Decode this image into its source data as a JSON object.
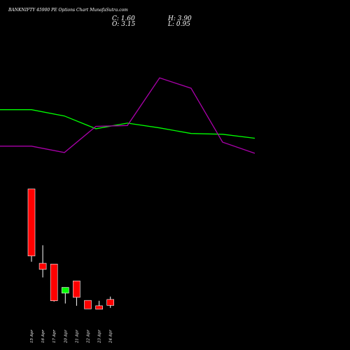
{
  "header": {
    "title": "BANKNIFTY 45900 PE Options Chart MunafaSutra.com",
    "close_text": "C: 1.60",
    "open_text": "O: 3.15",
    "high_text": "H: 3.90",
    "low_text": "L: 0.95"
  },
  "chart_data": {
    "type": "candlestick",
    "title": "BANKNIFTY 45900 PE Options Chart MunafaSutra.com",
    "categories": [
      "15 Apr",
      "16 Apr",
      "17 Apr",
      "20 Apr",
      "21 Apr",
      "22 Apr",
      "23 Apr",
      "24 Apr"
    ],
    "ohlc": [
      {
        "date": "15 Apr",
        "open": 32.0,
        "high": 32.0,
        "low": 13.0,
        "close": 14.5
      },
      {
        "date": "16 Apr",
        "open": 12.6,
        "high": 17.3,
        "low": 8.9,
        "close": 11.0
      },
      {
        "date": "17 Apr",
        "open": 12.4,
        "high": 12.4,
        "low": 2.6,
        "close": 2.8
      },
      {
        "date": "20 Apr",
        "open": 4.8,
        "high": 6.3,
        "low": 2.1,
        "close": 6.3
      },
      {
        "date": "21 Apr",
        "open": 8.0,
        "high": 8.0,
        "low": 1.5,
        "close": 3.7
      },
      {
        "date": "22 Apr",
        "open": 2.9,
        "high": 2.9,
        "low": 0.7,
        "close": 0.7
      },
      {
        "date": "23 Apr",
        "open": 1.5,
        "high": 2.8,
        "low": 0.6,
        "close": 0.6
      },
      {
        "date": "24 Apr",
        "open": 3.15,
        "high": 3.9,
        "low": 0.95,
        "close": 1.6
      }
    ],
    "ylim": [
      -2,
      34
    ],
    "colors": {
      "up": "#00ff00",
      "down": "#ff0000",
      "line_green": "#00ff00",
      "line_purple": "#aa00aa",
      "background": "#000000"
    },
    "overlay_lines": [
      {
        "color": "#00ff00",
        "values": [
          100.0,
          100.0,
          92.0,
          76.0,
          83.0,
          77.0,
          70.0,
          69.0,
          64.0
        ]
      },
      {
        "color": "#aa00aa",
        "values": [
          54.0,
          54.0,
          46.0,
          79.0,
          80.0,
          140.0,
          127.0,
          59.0,
          45.0
        ]
      }
    ],
    "grid": false
  }
}
